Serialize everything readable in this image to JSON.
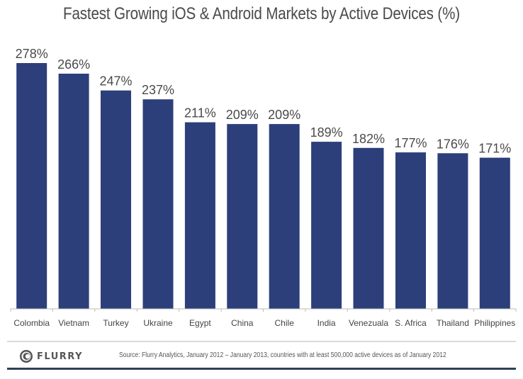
{
  "chart_data": {
    "type": "bar",
    "title": "Fastest Growing iOS & Android Markets by Active Devices (%)",
    "categories": [
      "Colombia",
      "Vietnam",
      "Turkey",
      "Ukraine",
      "Egypt",
      "China",
      "Chile",
      "India",
      "Venezuala",
      "S. Africa",
      "Thailand",
      "Philippines"
    ],
    "values": [
      278,
      266,
      247,
      237,
      211,
      209,
      209,
      189,
      182,
      177,
      176,
      171
    ],
    "value_labels": [
      "278%",
      "266%",
      "247%",
      "237%",
      "211%",
      "209%",
      "209%",
      "189%",
      "182%",
      "177%",
      "176%",
      "171%"
    ],
    "xlabel": "",
    "ylabel": "",
    "ylim": [
      0,
      290
    ],
    "grid": false,
    "legend": "none",
    "bar_color": "#2c3f7a",
    "unit": "%"
  },
  "footer": {
    "logo_text": "FLURRY",
    "logo_icon": "flurry-logo-icon",
    "source": "Source: Flurry Analytics, January 2012 – January 2013, countries with at least 500,000 active devices as of January 2012"
  },
  "colors": {
    "bar": "#2c3f7a",
    "text": "#4a4a4a",
    "rule": "#2b405b"
  }
}
